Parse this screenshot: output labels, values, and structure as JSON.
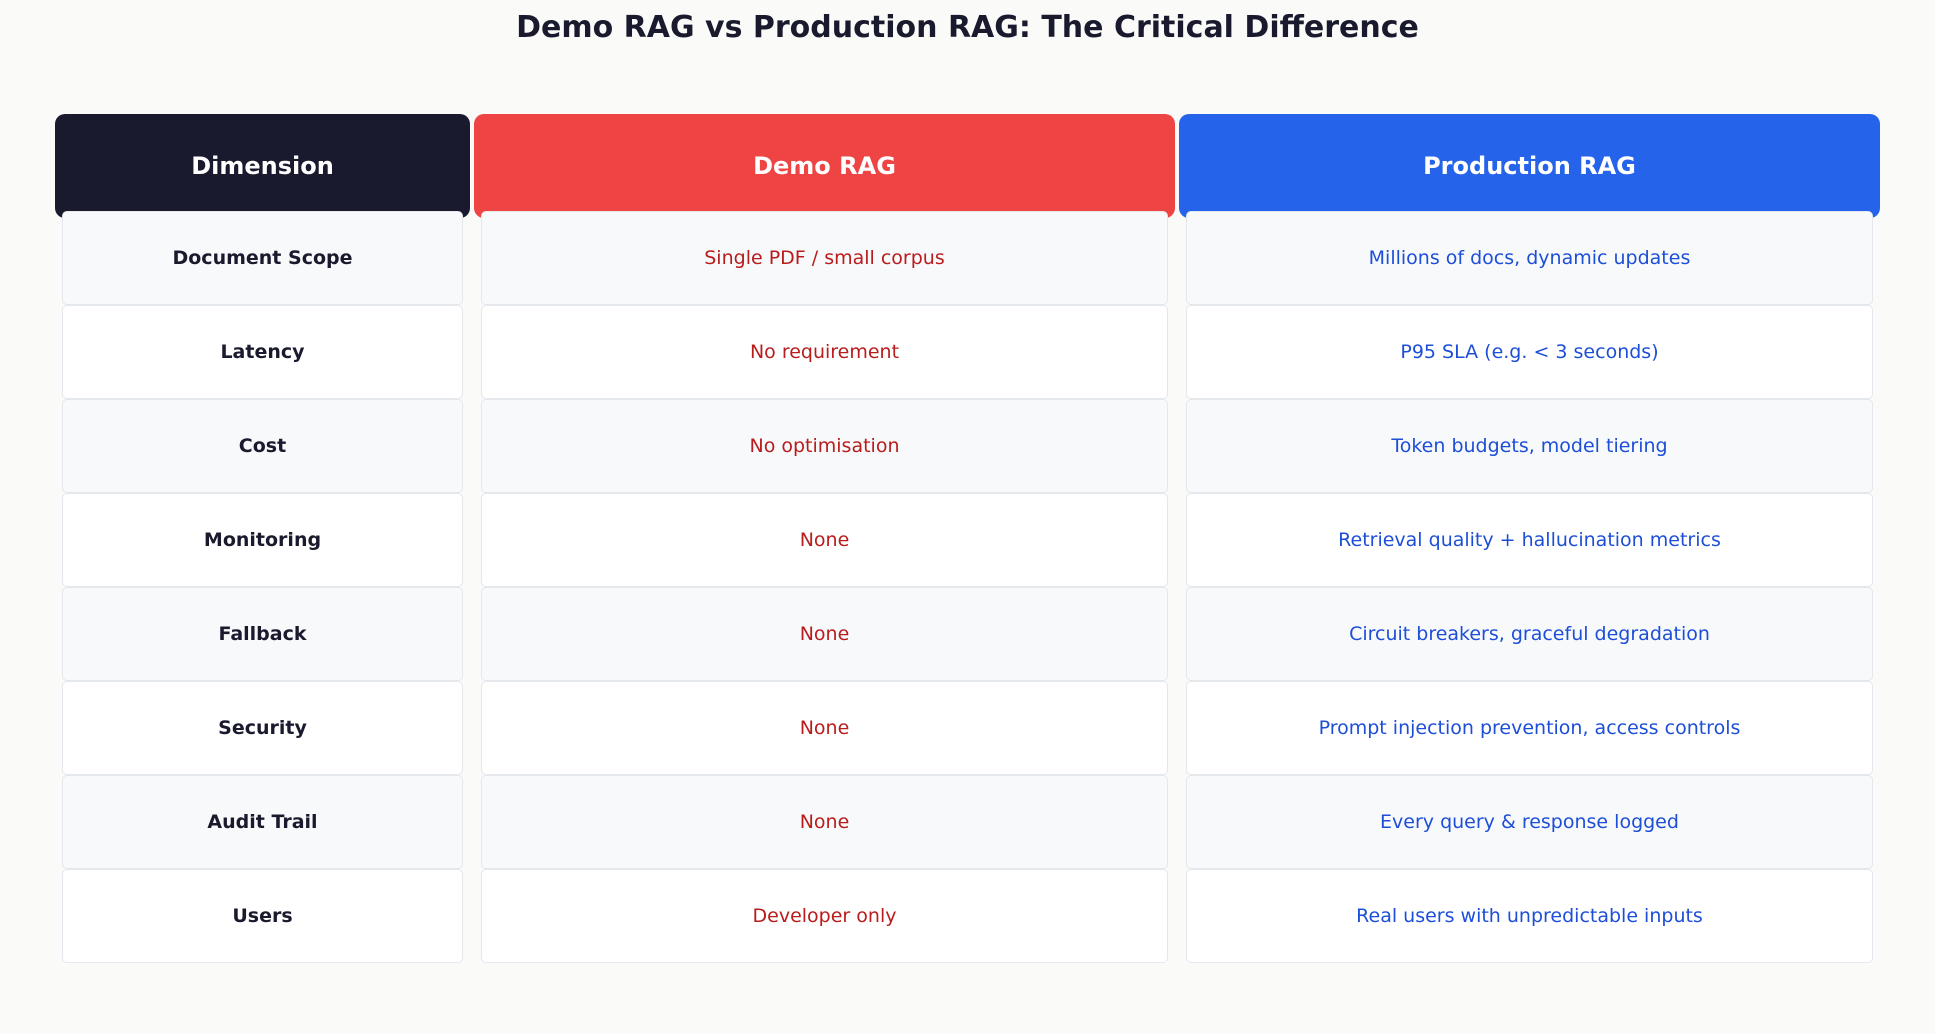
{
  "title": "Demo RAG vs Production RAG: The Critical Difference",
  "colors": {
    "dimension_header": "#1a1a2e",
    "demo_header": "#ef4444",
    "production_header": "#2563eb",
    "demo_text": "#b91c1c",
    "production_text": "#1d4ed8"
  },
  "headers": {
    "dimension": "Dimension",
    "demo": "Demo RAG",
    "production": "Production RAG"
  },
  "rows": [
    {
      "dimension": "Document Scope",
      "demo": "Single PDF / small corpus",
      "production": "Millions of docs, dynamic updates"
    },
    {
      "dimension": "Latency",
      "demo": "No requirement",
      "production": "P95 SLA (e.g. < 3 seconds)"
    },
    {
      "dimension": "Cost",
      "demo": "No optimisation",
      "production": "Token budgets, model tiering"
    },
    {
      "dimension": "Monitoring",
      "demo": "None",
      "production": "Retrieval quality + hallucination metrics"
    },
    {
      "dimension": "Fallback",
      "demo": "None",
      "production": "Circuit breakers, graceful degradation"
    },
    {
      "dimension": "Security",
      "demo": "None",
      "production": "Prompt injection prevention, access controls"
    },
    {
      "dimension": "Audit Trail",
      "demo": "None",
      "production": "Every query & response logged"
    },
    {
      "dimension": "Users",
      "demo": "Developer only",
      "production": "Real users with unpredictable inputs"
    }
  ]
}
